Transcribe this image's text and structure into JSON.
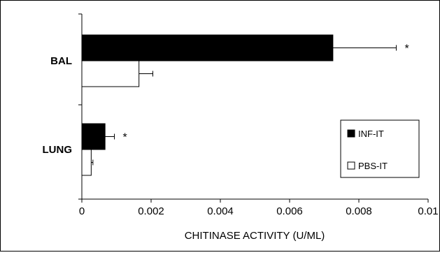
{
  "chart_data": {
    "type": "bar",
    "orientation": "horizontal",
    "categories": [
      "BAL",
      "LUNG"
    ],
    "series": [
      {
        "name": "INF-IT",
        "values": [
          0.00725,
          0.00067
        ],
        "errors": [
          0.00183,
          0.00027
        ],
        "significance": [
          "*",
          "*"
        ],
        "fill": "#000000"
      },
      {
        "name": "PBS-IT",
        "values": [
          0.00165,
          0.00027
        ],
        "errors": [
          0.0004,
          5e-05
        ],
        "significance": [
          "",
          ""
        ],
        "fill": "#ffffff"
      }
    ],
    "xlabel": "CHITINASE ACTIVITY (U/ML)",
    "ylabel": "",
    "xlim": [
      0,
      0.01
    ],
    "xticks": [
      "0",
      "0.002",
      "0.004",
      "0.006",
      "0.008",
      "0.01"
    ],
    "grid": false,
    "legend_position": "lower-right"
  }
}
